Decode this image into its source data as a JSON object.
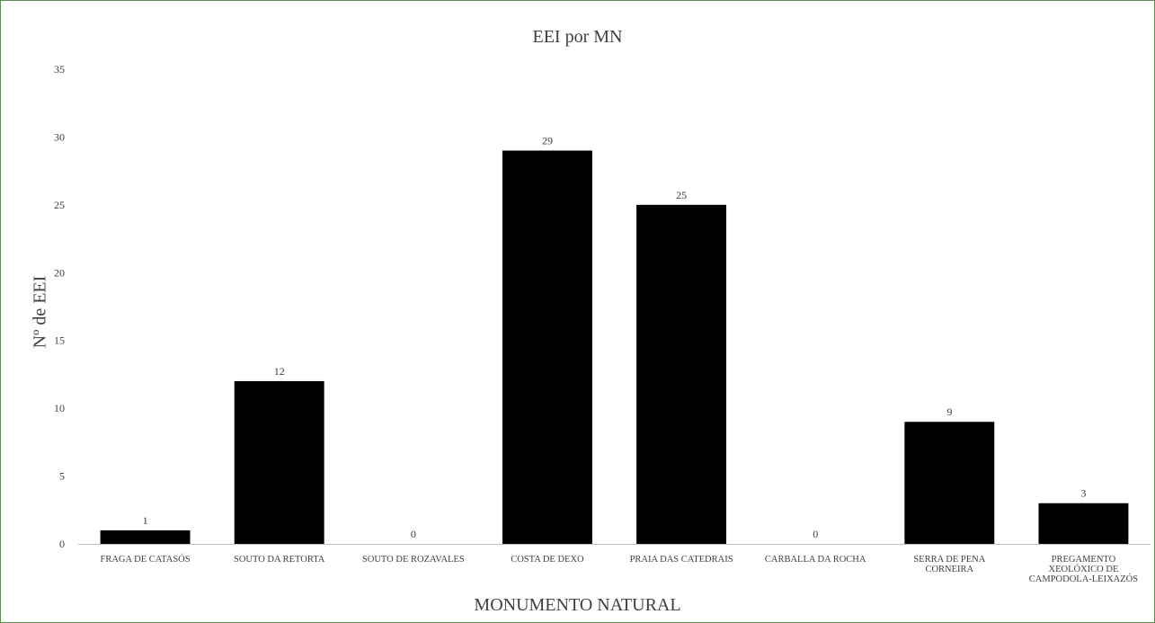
{
  "chart_data": {
    "type": "bar",
    "title": "EEI por MN",
    "xlabel": "MONUMENTO NATURAL",
    "ylabel": "Nº de EEI",
    "categories": [
      "FRAGA DE CATASÓS",
      "SOUTO DA RETORTA",
      "SOUTO DE ROZAVALES",
      "COSTA DE DEXO",
      "PRAIA DAS CATEDRAIS",
      "CARBALLA DA ROCHA",
      "SERRA DE PENA CORNEIRA",
      "PREGAMENTO XEOLÓXICO DE CAMPODOLA-LEIXAZÓS"
    ],
    "category_lines": [
      [
        "FRAGA DE CATASÓS"
      ],
      [
        "SOUTO DA RETORTA"
      ],
      [
        "SOUTO DE ROZAVALES"
      ],
      [
        "COSTA DE DEXO"
      ],
      [
        "PRAIA DAS CATEDRAIS"
      ],
      [
        "CARBALLA DA ROCHA"
      ],
      [
        "SERRA DE PENA",
        "CORNEIRA"
      ],
      [
        "PREGAMENTO",
        "XEOLÓXICO DE",
        "CAMPODOLA-LEIXAZÓS"
      ]
    ],
    "values": [
      1,
      12,
      0,
      29,
      25,
      0,
      9,
      3
    ],
    "ylim": [
      0,
      35
    ],
    "yticks": [
      0,
      5,
      10,
      15,
      20,
      25,
      30,
      35
    ],
    "data_labels": true,
    "grid": false,
    "legend": "none",
    "bar_color": "#000000",
    "axis_color": "#bfbfbf",
    "text_color": "#404040",
    "frame_color": "#5a8f4d"
  }
}
